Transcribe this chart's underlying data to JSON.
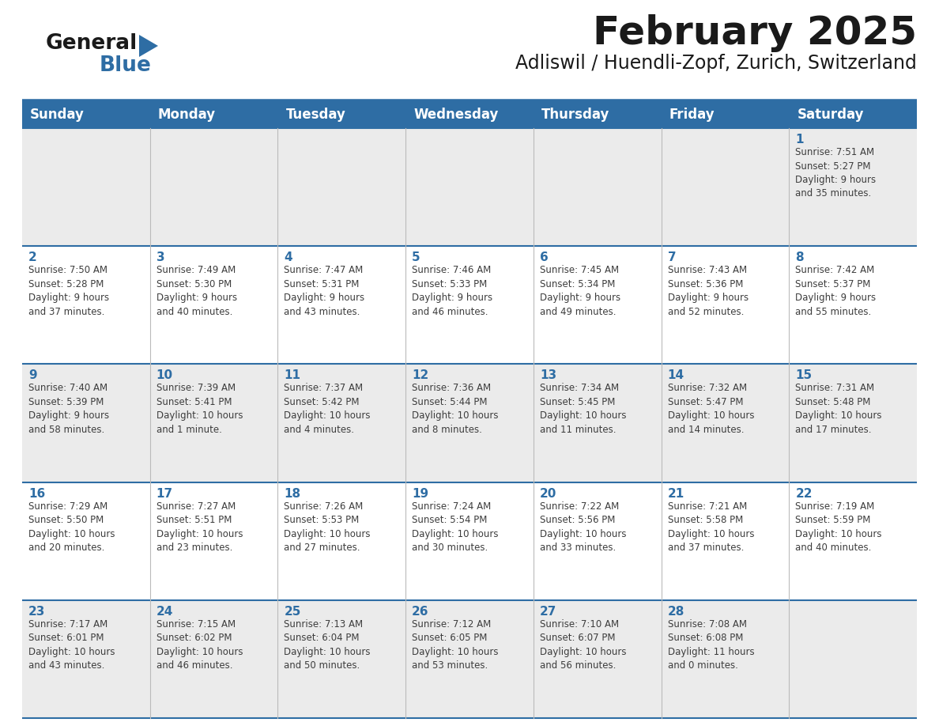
{
  "title": "February 2025",
  "subtitle": "Adliswil / Huendli-Zopf, Zurich, Switzerland",
  "header_bg": "#2E6DA4",
  "header_text": "#FFFFFF",
  "cell_bg_light": "#EBEBEB",
  "cell_bg_white": "#FFFFFF",
  "separator_color": "#2E6DA4",
  "day_num_color": "#2E6DA4",
  "text_color": "#3D3D3D",
  "day_headers": [
    "Sunday",
    "Monday",
    "Tuesday",
    "Wednesday",
    "Thursday",
    "Friday",
    "Saturday"
  ],
  "row_backgrounds": [
    "light",
    "white",
    "light",
    "white",
    "light"
  ],
  "weeks": [
    [
      {
        "day": "",
        "info": ""
      },
      {
        "day": "",
        "info": ""
      },
      {
        "day": "",
        "info": ""
      },
      {
        "day": "",
        "info": ""
      },
      {
        "day": "",
        "info": ""
      },
      {
        "day": "",
        "info": ""
      },
      {
        "day": "1",
        "info": "Sunrise: 7:51 AM\nSunset: 5:27 PM\nDaylight: 9 hours\nand 35 minutes."
      }
    ],
    [
      {
        "day": "2",
        "info": "Sunrise: 7:50 AM\nSunset: 5:28 PM\nDaylight: 9 hours\nand 37 minutes."
      },
      {
        "day": "3",
        "info": "Sunrise: 7:49 AM\nSunset: 5:30 PM\nDaylight: 9 hours\nand 40 minutes."
      },
      {
        "day": "4",
        "info": "Sunrise: 7:47 AM\nSunset: 5:31 PM\nDaylight: 9 hours\nand 43 minutes."
      },
      {
        "day": "5",
        "info": "Sunrise: 7:46 AM\nSunset: 5:33 PM\nDaylight: 9 hours\nand 46 minutes."
      },
      {
        "day": "6",
        "info": "Sunrise: 7:45 AM\nSunset: 5:34 PM\nDaylight: 9 hours\nand 49 minutes."
      },
      {
        "day": "7",
        "info": "Sunrise: 7:43 AM\nSunset: 5:36 PM\nDaylight: 9 hours\nand 52 minutes."
      },
      {
        "day": "8",
        "info": "Sunrise: 7:42 AM\nSunset: 5:37 PM\nDaylight: 9 hours\nand 55 minutes."
      }
    ],
    [
      {
        "day": "9",
        "info": "Sunrise: 7:40 AM\nSunset: 5:39 PM\nDaylight: 9 hours\nand 58 minutes."
      },
      {
        "day": "10",
        "info": "Sunrise: 7:39 AM\nSunset: 5:41 PM\nDaylight: 10 hours\nand 1 minute."
      },
      {
        "day": "11",
        "info": "Sunrise: 7:37 AM\nSunset: 5:42 PM\nDaylight: 10 hours\nand 4 minutes."
      },
      {
        "day": "12",
        "info": "Sunrise: 7:36 AM\nSunset: 5:44 PM\nDaylight: 10 hours\nand 8 minutes."
      },
      {
        "day": "13",
        "info": "Sunrise: 7:34 AM\nSunset: 5:45 PM\nDaylight: 10 hours\nand 11 minutes."
      },
      {
        "day": "14",
        "info": "Sunrise: 7:32 AM\nSunset: 5:47 PM\nDaylight: 10 hours\nand 14 minutes."
      },
      {
        "day": "15",
        "info": "Sunrise: 7:31 AM\nSunset: 5:48 PM\nDaylight: 10 hours\nand 17 minutes."
      }
    ],
    [
      {
        "day": "16",
        "info": "Sunrise: 7:29 AM\nSunset: 5:50 PM\nDaylight: 10 hours\nand 20 minutes."
      },
      {
        "day": "17",
        "info": "Sunrise: 7:27 AM\nSunset: 5:51 PM\nDaylight: 10 hours\nand 23 minutes."
      },
      {
        "day": "18",
        "info": "Sunrise: 7:26 AM\nSunset: 5:53 PM\nDaylight: 10 hours\nand 27 minutes."
      },
      {
        "day": "19",
        "info": "Sunrise: 7:24 AM\nSunset: 5:54 PM\nDaylight: 10 hours\nand 30 minutes."
      },
      {
        "day": "20",
        "info": "Sunrise: 7:22 AM\nSunset: 5:56 PM\nDaylight: 10 hours\nand 33 minutes."
      },
      {
        "day": "21",
        "info": "Sunrise: 7:21 AM\nSunset: 5:58 PM\nDaylight: 10 hours\nand 37 minutes."
      },
      {
        "day": "22",
        "info": "Sunrise: 7:19 AM\nSunset: 5:59 PM\nDaylight: 10 hours\nand 40 minutes."
      }
    ],
    [
      {
        "day": "23",
        "info": "Sunrise: 7:17 AM\nSunset: 6:01 PM\nDaylight: 10 hours\nand 43 minutes."
      },
      {
        "day": "24",
        "info": "Sunrise: 7:15 AM\nSunset: 6:02 PM\nDaylight: 10 hours\nand 46 minutes."
      },
      {
        "day": "25",
        "info": "Sunrise: 7:13 AM\nSunset: 6:04 PM\nDaylight: 10 hours\nand 50 minutes."
      },
      {
        "day": "26",
        "info": "Sunrise: 7:12 AM\nSunset: 6:05 PM\nDaylight: 10 hours\nand 53 minutes."
      },
      {
        "day": "27",
        "info": "Sunrise: 7:10 AM\nSunset: 6:07 PM\nDaylight: 10 hours\nand 56 minutes."
      },
      {
        "day": "28",
        "info": "Sunrise: 7:08 AM\nSunset: 6:08 PM\nDaylight: 11 hours\nand 0 minutes."
      },
      {
        "day": "",
        "info": ""
      }
    ]
  ],
  "logo_text_general": "General",
  "logo_text_blue": "Blue",
  "logo_color_general": "#1A1A1A",
  "logo_color_blue": "#2E6DA4",
  "logo_triangle_color": "#2E6DA4",
  "title_fontsize": 36,
  "subtitle_fontsize": 17,
  "header_fontsize": 12,
  "day_num_fontsize": 11,
  "info_fontsize": 8.5
}
